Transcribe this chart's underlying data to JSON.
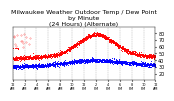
{
  "title": "Milwaukee Weather Outdoor Temp / Dew Point\nby Minute\n(24 Hours) (Alternate)",
  "title_fontsize": 4.5,
  "bg_color": "#ffffff",
  "plot_bg_color": "#ffffff",
  "grid_color": "#aaaaaa",
  "temp_color": "#ff0000",
  "dew_color": "#0000ff",
  "ylim": [
    10,
    90
  ],
  "yticks": [
    20,
    30,
    40,
    50,
    60,
    70,
    80
  ],
  "ytick_fontsize": 3.5,
  "xtick_fontsize": 2.5,
  "num_points": 1440
}
